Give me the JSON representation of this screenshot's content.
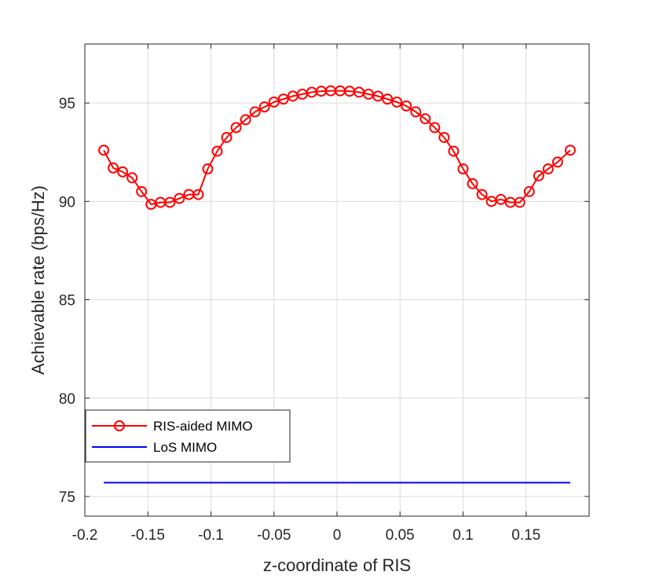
{
  "chart_data": {
    "type": "line",
    "title": "",
    "xlabel": "z-coordinate of RIS",
    "ylabel": "Achievable rate (bps/Hz)",
    "xlim": [
      -0.2,
      0.2
    ],
    "ylim": [
      74,
      98
    ],
    "xticks": [
      -0.2,
      -0.15,
      -0.1,
      -0.05,
      0,
      0.05,
      0.1,
      0.15
    ],
    "xtick_labels": [
      "-0.2",
      "-0.15",
      "-0.1",
      "-0.05",
      "0",
      "0.05",
      "0.1",
      "0.15"
    ],
    "yticks": [
      75,
      80,
      85,
      90,
      95
    ],
    "ytick_labels": [
      "75",
      "80",
      "85",
      "90",
      "95"
    ],
    "grid": true,
    "legend_position": "bottom-left",
    "series": [
      {
        "name": "RIS-aided MIMO",
        "color": "#ff0000",
        "marker": "circle",
        "x": [
          -0.185,
          -0.1775,
          -0.17,
          -0.1625,
          -0.155,
          -0.1475,
          -0.14,
          -0.1325,
          -0.125,
          -0.1175,
          -0.11,
          -0.1025,
          -0.095,
          -0.0875,
          -0.08,
          -0.0725,
          -0.065,
          -0.0575,
          -0.05,
          -0.0425,
          -0.035,
          -0.0275,
          -0.02,
          -0.0125,
          -0.005,
          0.0025,
          0.01,
          0.0175,
          0.025,
          0.0325,
          0.04,
          0.0475,
          0.055,
          0.0625,
          0.07,
          0.0775,
          0.085,
          0.0925,
          0.1,
          0.1075,
          0.115,
          0.1225,
          0.13,
          0.1375,
          0.145,
          0.1525,
          0.16,
          0.1675,
          0.175,
          0.185
        ],
        "y": [
          92.6,
          91.7,
          91.5,
          91.2,
          90.5,
          89.85,
          89.95,
          89.95,
          90.15,
          90.35,
          90.35,
          91.65,
          92.55,
          93.25,
          93.75,
          94.15,
          94.55,
          94.8,
          95.05,
          95.2,
          95.35,
          95.45,
          95.55,
          95.6,
          95.62,
          95.62,
          95.6,
          95.55,
          95.45,
          95.35,
          95.2,
          95.05,
          94.85,
          94.55,
          94.2,
          93.75,
          93.25,
          92.55,
          91.65,
          90.9,
          90.35,
          90.0,
          90.1,
          89.95,
          89.95,
          90.5,
          91.3,
          91.65,
          92.0,
          92.6
        ]
      },
      {
        "name": "LoS MIMO",
        "color": "#0000ff",
        "marker": "none",
        "x": [
          -0.185,
          0.185
        ],
        "y": [
          75.7,
          75.7
        ]
      }
    ]
  }
}
